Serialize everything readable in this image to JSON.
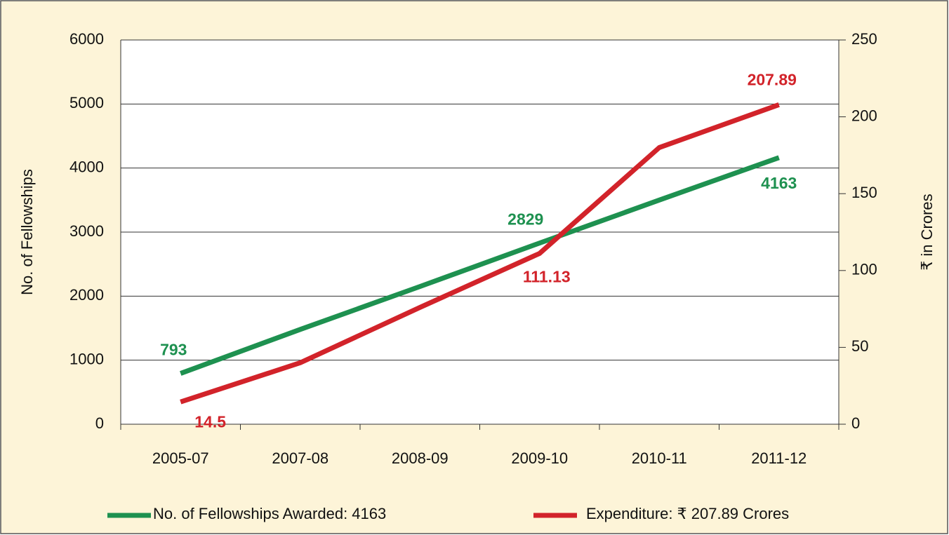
{
  "chart_data": {
    "type": "line",
    "categories": [
      "2005-07",
      "2007-08",
      "2008-09",
      "2009-10",
      "2010-11",
      "2011-12"
    ],
    "ylabel": "No. of Fellowships",
    "y2label": "₹ in Crores",
    "ylim": [
      0,
      6000
    ],
    "yticks": [
      0,
      1000,
      2000,
      3000,
      4000,
      5000,
      6000
    ],
    "y2lim": [
      0,
      250
    ],
    "y2ticks": [
      0,
      50,
      100,
      150,
      200,
      250
    ],
    "grid": true,
    "legend": "bottom",
    "series": [
      {
        "name": "No. of Fellowships Awarded: 4163",
        "color": "#1e9150",
        "values": [
          793,
          1480,
          2150,
          2829,
          3500,
          4163
        ],
        "value_labels": [
          "793",
          null,
          null,
          "2829",
          null,
          "4163"
        ]
      },
      {
        "name": "Expenditure: ₹ 207.89 Crores",
        "color": "#d2232a",
        "axis": "y2",
        "values": [
          14.5,
          40,
          76,
          111.13,
          180,
          207.89
        ],
        "value_labels": [
          "14.5",
          null,
          null,
          "111.13",
          null,
          "207.89"
        ]
      }
    ]
  }
}
